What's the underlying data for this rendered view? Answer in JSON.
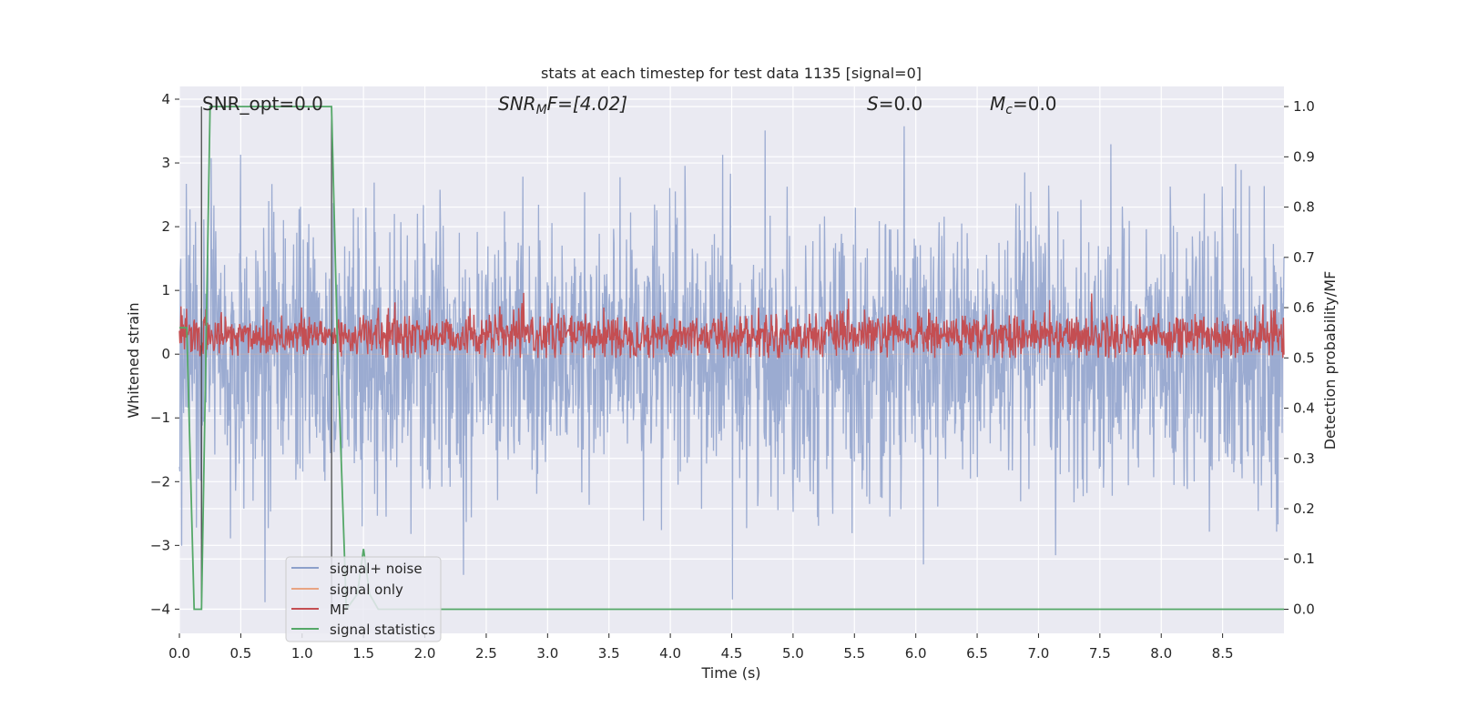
{
  "chart_data": {
    "type": "line",
    "title": "stats at each timestep for test data 1135 [signal=0]",
    "xlabel": "Time (s)",
    "ylabel_left": "Whitened strain",
    "ylabel_right": "Detection probability/MF",
    "xlim": [
      0.0,
      9.0
    ],
    "ylim_left": [
      -4.38,
      4.2
    ],
    "ylim_right": [
      -0.048,
      1.04
    ],
    "xticks": [
      "0.0",
      "0.5",
      "1.0",
      "1.5",
      "2.0",
      "2.5",
      "3.0",
      "3.5",
      "4.0",
      "4.5",
      "5.0",
      "5.5",
      "6.0",
      "6.5",
      "7.0",
      "7.5",
      "8.0",
      "8.5"
    ],
    "yticks_left": [
      "4",
      "3",
      "2",
      "1",
      "0",
      "−1",
      "−2",
      "−3",
      "−4"
    ],
    "yticks_right": [
      "1.0",
      "0.9",
      "0.8",
      "0.7",
      "0.6",
      "0.5",
      "0.4",
      "0.3",
      "0.2",
      "0.1",
      "0.0"
    ],
    "grid": true,
    "legend_position": "lower-left",
    "annotations": {
      "snr_opt": "SNR_opt=0.0",
      "snr_mf_sym": "SNR",
      "snr_mf_sub": "M",
      "snr_mf_rest": "F=[4.02]",
      "s_sym": "S",
      "s_val": "=0.0",
      "mc_sym": "M",
      "mc_sub": "c",
      "mc_val": "=0.0"
    },
    "series": [
      {
        "name": "signal+ noise",
        "color": "#8da0cb",
        "description_range": [
          -4.0,
          3.8
        ],
        "mean": 0.0,
        "std": 1.0
      },
      {
        "name": "signal only",
        "color": "#e8a483",
        "values_constant": 0.0
      },
      {
        "name": "MF",
        "color": "#c44e52",
        "mean_right": 0.54,
        "range_right": [
          0.52,
          0.62
        ]
      },
      {
        "name": "signal statistics",
        "color": "#55a868",
        "x": [
          0.0,
          0.06,
          0.12,
          0.18,
          0.25,
          1.24,
          1.29,
          1.36,
          1.45,
          1.5,
          1.55,
          1.62,
          9.0
        ],
        "y": [
          0.56,
          0.56,
          0.0,
          0.0,
          1.0,
          1.0,
          0.5,
          0.0,
          0.03,
          0.12,
          0.03,
          0.0,
          0.0
        ]
      }
    ],
    "vlines": [
      0.18,
      1.24
    ]
  },
  "colors": {
    "axes_bg": "#eaeaf2",
    "grid": "#ffffff",
    "noise": "#8da0cb",
    "signal_only": "#e8a483",
    "mf": "#c44e52",
    "stats": "#55a868",
    "vline": "#4c4c4c"
  }
}
